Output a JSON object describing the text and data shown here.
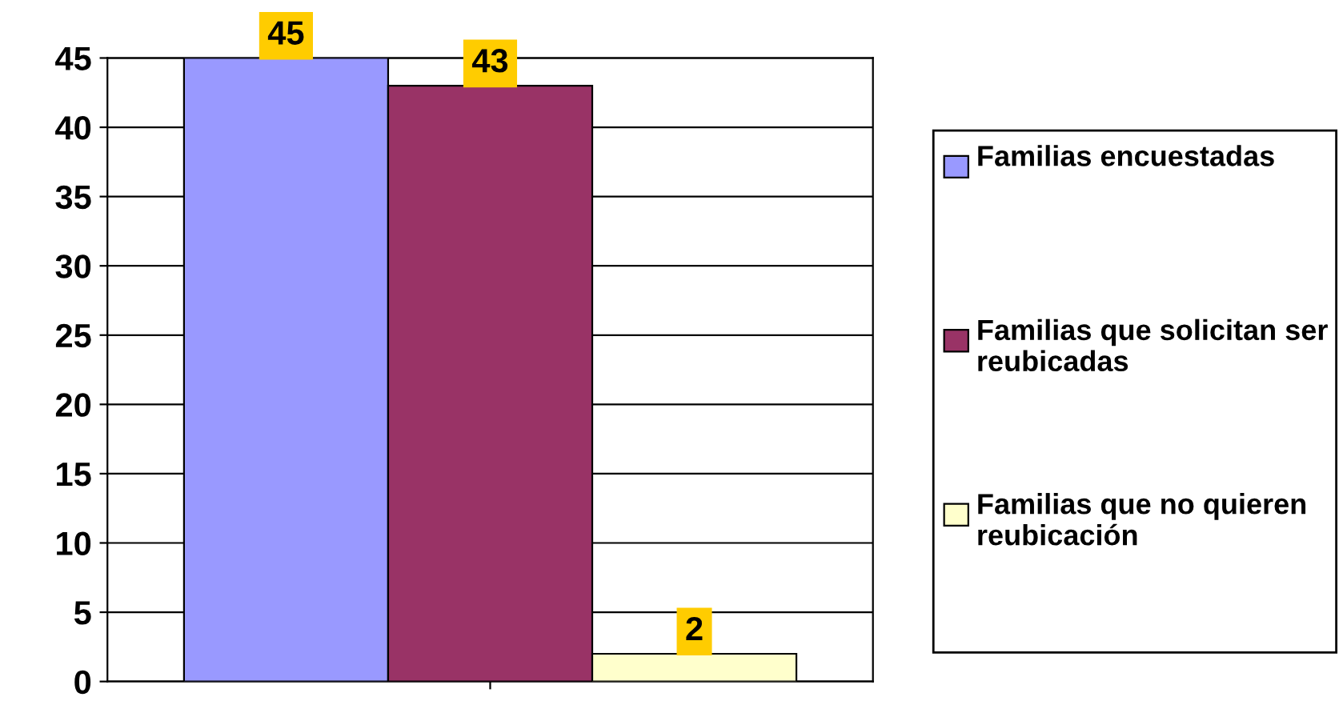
{
  "chart_data": {
    "type": "bar",
    "categories": [
      null
    ],
    "series": [
      {
        "name": "Familias encuestadas",
        "color": "#9999ff",
        "values": [
          45
        ]
      },
      {
        "name": "Familias que solicitan ser reubicadas",
        "color": "#993366",
        "values": [
          43
        ]
      },
      {
        "name": "Familias que no quieren reubicación",
        "color": "#ffffcc",
        "values": [
          2
        ]
      }
    ],
    "ylim": [
      0,
      45
    ],
    "yticks": [
      0,
      5,
      10,
      15,
      20,
      25,
      30,
      35,
      40,
      45
    ],
    "grid": "y",
    "legend": "right",
    "data_labels": true,
    "tick_labels": "y"
  }
}
